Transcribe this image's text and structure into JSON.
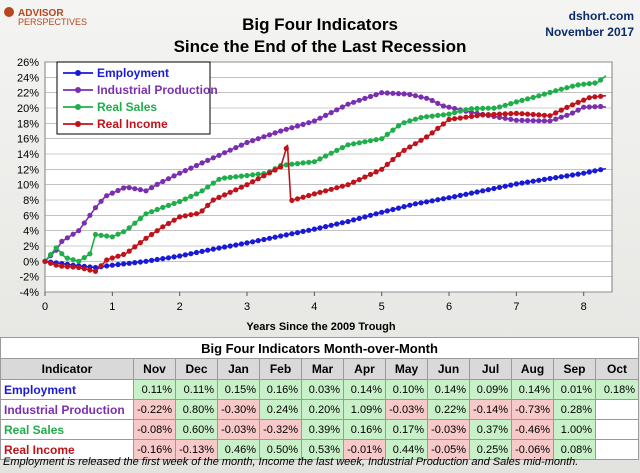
{
  "logo": {
    "line1": "ADVISOR",
    "line2": "PERSPECTIVES"
  },
  "header": {
    "title_line1": "Big Four Indicators",
    "title_line2": "Since the End of the Last Recession",
    "site": "dshort.com",
    "date": "November 2017"
  },
  "colors": {
    "employment": "#1a1ad6",
    "industrial_production": "#7a2fb0",
    "real_sales": "#1fae4a",
    "real_income": "#c0121a",
    "grid": "#9e9e9e",
    "positive_cell": "#c9f1c9",
    "negative_cell": "#f8c9c9"
  },
  "chart_data": {
    "type": "line",
    "title": "Big Four Indicators",
    "subtitle": "Since the End of the Last Recession",
    "xlabel": "Years Since the 2009 Trough",
    "ylabel": "",
    "xlim": [
      0,
      8.42
    ],
    "ylim": [
      -4,
      26
    ],
    "x_ticks": [
      0,
      1,
      2,
      3,
      4,
      5,
      6,
      7,
      8
    ],
    "y_ticks": [
      "-4%",
      "-2%",
      "0%",
      "2%",
      "4%",
      "6%",
      "8%",
      "10%",
      "12%",
      "14%",
      "16%",
      "18%",
      "20%",
      "22%",
      "24%",
      "26%"
    ],
    "grid": true,
    "legend_position": "top-left",
    "series": [
      {
        "name": "Employment",
        "color": "#1a1ad6",
        "points": [
          [
            0,
            0
          ],
          [
            0.5,
            -0.6
          ],
          [
            0.75,
            -0.8
          ],
          [
            1,
            -0.5
          ],
          [
            1.5,
            0
          ],
          [
            2,
            0.7
          ],
          [
            2.5,
            1.6
          ],
          [
            3,
            2.4
          ],
          [
            3.5,
            3.3
          ],
          [
            4,
            4.2
          ],
          [
            4.5,
            5.2
          ],
          [
            5,
            6.4
          ],
          [
            5.5,
            7.5
          ],
          [
            6,
            8.3
          ],
          [
            6.5,
            9.2
          ],
          [
            7,
            10.1
          ],
          [
            7.5,
            10.8
          ],
          [
            8,
            11.5
          ],
          [
            8.33,
            12.1
          ]
        ]
      },
      {
        "name": "Industrial Production",
        "color": "#7a2fb0",
        "points": [
          [
            0,
            0
          ],
          [
            0.17,
            1.5
          ],
          [
            0.25,
            2.6
          ],
          [
            0.5,
            4
          ],
          [
            0.75,
            7
          ],
          [
            0.9,
            8.5
          ],
          [
            1.2,
            9.7
          ],
          [
            1.5,
            9.2
          ],
          [
            1.7,
            10.2
          ],
          [
            2,
            11.5
          ],
          [
            2.5,
            13.5
          ],
          [
            3,
            15.5
          ],
          [
            3.5,
            17
          ],
          [
            4,
            18.3
          ],
          [
            4.5,
            20.5
          ],
          [
            5,
            22
          ],
          [
            5.4,
            21.8
          ],
          [
            5.7,
            21.2
          ],
          [
            5.9,
            20.3
          ],
          [
            6.3,
            19.5
          ],
          [
            6.6,
            19
          ],
          [
            7,
            18.4
          ],
          [
            7.5,
            18.3
          ],
          [
            7.8,
            19.2
          ],
          [
            8,
            20.1
          ],
          [
            8.25,
            20.2
          ],
          [
            8.33,
            20.1
          ]
        ]
      },
      {
        "name": "Real Sales",
        "color": "#1fae4a",
        "points": [
          [
            0,
            0
          ],
          [
            0.17,
            1.8
          ],
          [
            0.3,
            0.5
          ],
          [
            0.5,
            0
          ],
          [
            0.67,
            1
          ],
          [
            0.75,
            3.5
          ],
          [
            1,
            3.2
          ],
          [
            1.2,
            4
          ],
          [
            1.5,
            6.2
          ],
          [
            1.8,
            7.2
          ],
          [
            2,
            7.8
          ],
          [
            2.3,
            9
          ],
          [
            2.6,
            10.8
          ],
          [
            3,
            11.2
          ],
          [
            3.3,
            11.5
          ],
          [
            3.5,
            12.5
          ],
          [
            4,
            13
          ],
          [
            4.5,
            15.2
          ],
          [
            5,
            16
          ],
          [
            5.3,
            18
          ],
          [
            5.6,
            18.8
          ],
          [
            6,
            19.2
          ],
          [
            6.3,
            19.9
          ],
          [
            6.7,
            20
          ],
          [
            7,
            20.8
          ],
          [
            7.3,
            21.5
          ],
          [
            7.6,
            22.3
          ],
          [
            7.9,
            23
          ],
          [
            8.2,
            23.3
          ],
          [
            8.33,
            24.2
          ]
        ]
      },
      {
        "name": "Real Income",
        "color": "#c0121a",
        "points": [
          [
            0,
            0
          ],
          [
            0.2,
            -0.6
          ],
          [
            0.5,
            -0.8
          ],
          [
            0.75,
            -1.3
          ],
          [
            0.92,
            0.2
          ],
          [
            1.2,
            1
          ],
          [
            1.5,
            3
          ],
          [
            1.75,
            4.5
          ],
          [
            2,
            5.8
          ],
          [
            2.3,
            6.3
          ],
          [
            2.5,
            8
          ],
          [
            3,
            10
          ],
          [
            3.5,
            12.3
          ],
          [
            3.6,
            15.2
          ],
          [
            3.65,
            7.9
          ],
          [
            4,
            8.8
          ],
          [
            4.5,
            10
          ],
          [
            5,
            12
          ],
          [
            5.3,
            14.3
          ],
          [
            5.7,
            16.4
          ],
          [
            6,
            18.5
          ],
          [
            6.5,
            19.1
          ],
          [
            7,
            19.3
          ],
          [
            7.5,
            19
          ],
          [
            7.8,
            20.3
          ],
          [
            8.1,
            21.4
          ],
          [
            8.33,
            21.6
          ]
        ]
      }
    ]
  },
  "table": {
    "title": "Big Four Indicators Month-over-Month",
    "headers": [
      "Indicator",
      "Nov",
      "Dec",
      "Jan",
      "Feb",
      "Mar",
      "Apr",
      "May",
      "Jun",
      "Jul",
      "Aug",
      "Sep",
      "Oct"
    ],
    "rows": [
      {
        "name": "Employment",
        "color": "#1a1ad6",
        "values": [
          "0.11%",
          "0.11%",
          "0.15%",
          "0.16%",
          "0.03%",
          "0.14%",
          "0.10%",
          "0.14%",
          "0.09%",
          "0.14%",
          "0.01%",
          "0.18%"
        ]
      },
      {
        "name": "Industrial Production",
        "color": "#7a2fb0",
        "values": [
          "-0.22%",
          "0.80%",
          "-0.30%",
          "0.24%",
          "0.20%",
          "1.09%",
          "-0.03%",
          "0.22%",
          "-0.14%",
          "-0.73%",
          "0.28%",
          ""
        ]
      },
      {
        "name": "Real Sales",
        "color": "#1fae4a",
        "values": [
          "-0.08%",
          "0.60%",
          "-0.03%",
          "-0.32%",
          "0.39%",
          "0.16%",
          "0.17%",
          "-0.03%",
          "0.37%",
          "-0.46%",
          "1.00%",
          ""
        ]
      },
      {
        "name": "Real Income",
        "color": "#c0121a",
        "values": [
          "-0.16%",
          "-0.13%",
          "0.46%",
          "0.50%",
          "0.53%",
          "-0.01%",
          "0.44%",
          "-0.05%",
          "0.25%",
          "-0.06%",
          "0.08%",
          ""
        ]
      }
    ]
  },
  "footnote": "Employment is released the first week of the month, Income the last week, Industrial Production and Sales mid-month."
}
